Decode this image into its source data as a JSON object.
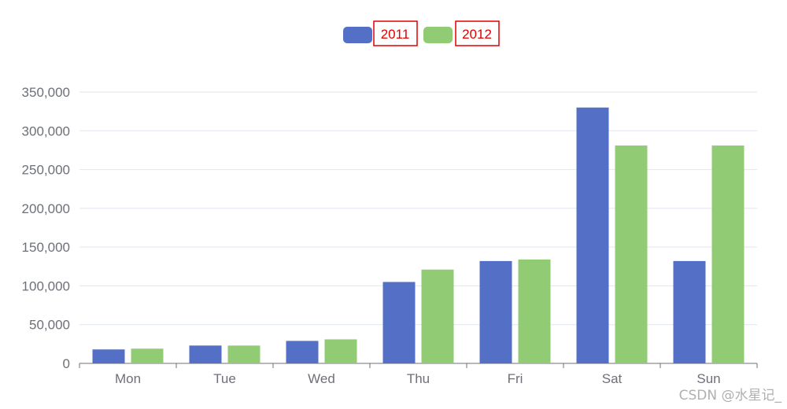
{
  "chart_data": {
    "type": "bar",
    "categories": [
      "Mon",
      "Tue",
      "Wed",
      "Thu",
      "Fri",
      "Sat",
      "Sun"
    ],
    "series": [
      {
        "name": "2011",
        "values": [
          18000,
          23000,
          29000,
          105000,
          132000,
          330000,
          132000
        ]
      },
      {
        "name": "2012",
        "values": [
          19000,
          23000,
          31000,
          121000,
          134000,
          281000,
          281000
        ]
      }
    ],
    "ylim": [
      0,
      350000
    ],
    "yticks": [
      "0",
      "50,000",
      "100,000",
      "150,000",
      "200,000",
      "250,000",
      "300,000",
      "350,000"
    ],
    "grid": true,
    "legend_position": "top-center",
    "colors": {
      "2011": "#5470c6",
      "2012": "#91cc75",
      "legend_label_border": "#e00000"
    }
  },
  "watermark": "CSDN @水星记_"
}
